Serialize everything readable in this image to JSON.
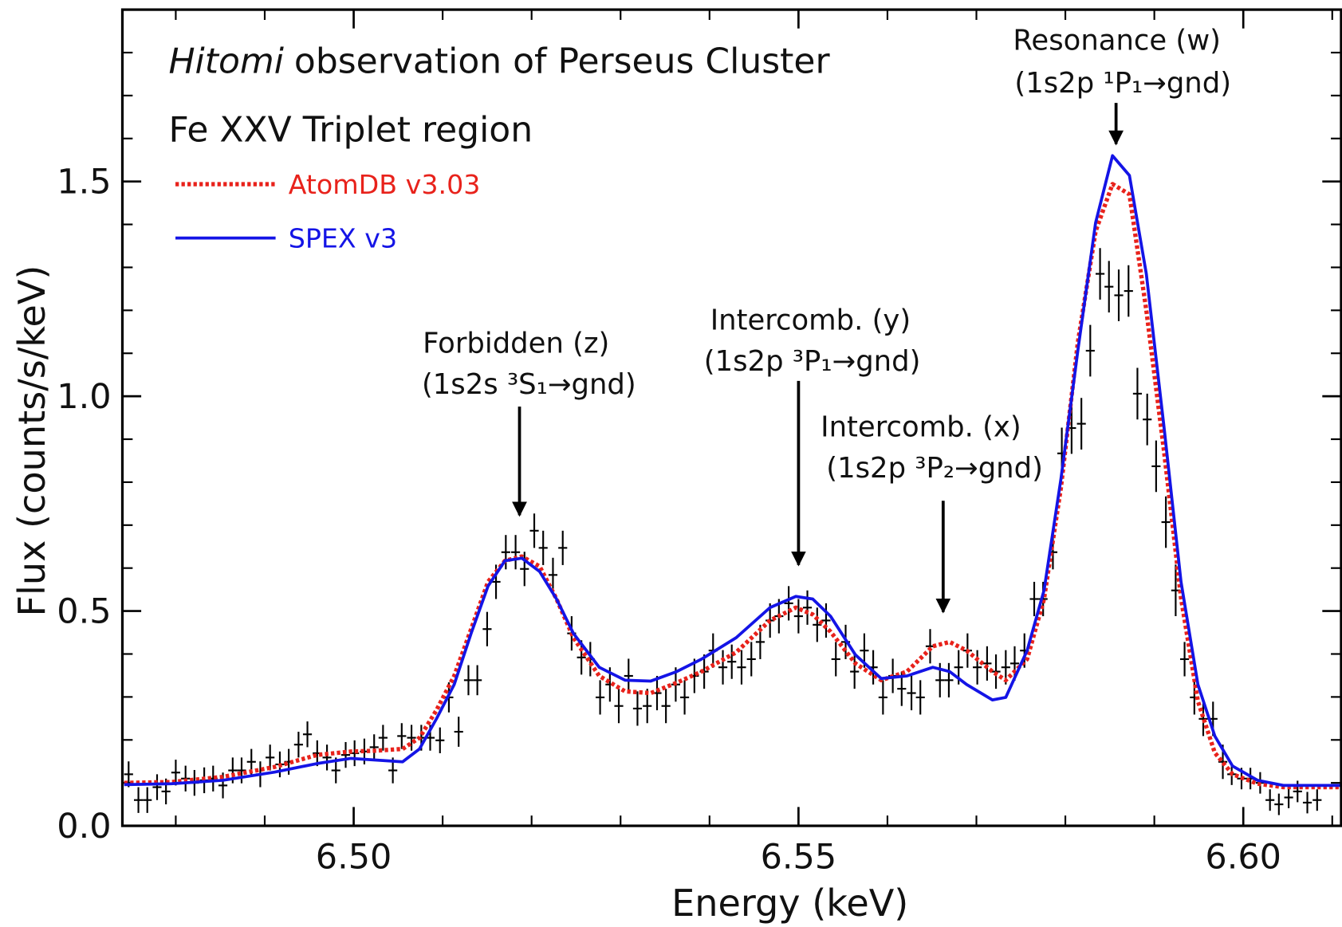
{
  "chart_data": {
    "type": "line",
    "title": [
      "Hitomi",
      "observation of Perseus Cluster"
    ],
    "subtitle": "Fe XXV Triplet region",
    "x_label": "Energy (keV)",
    "y_label": "Flux (counts/s/keV)",
    "xlim": [
      6.474,
      6.611
    ],
    "ylim": [
      0,
      1.9
    ],
    "xticks": [
      {
        "value": 6.5,
        "label": "6.50"
      },
      6.55,
      {
        "value": 6.6,
        "label": "6.60"
      }
    ],
    "yticks": [
      {
        "value": 0,
        "label": "0.0"
      },
      0.5,
      {
        "value": 1,
        "label": "1.0"
      },
      1.5
    ],
    "xminorticks": [
      6.48,
      6.49,
      6.51,
      6.52,
      6.53,
      6.54,
      6.56,
      6.57,
      6.58,
      6.59,
      6.61
    ],
    "yminorticks": [
      0.1,
      0.2,
      0.3,
      0.4,
      0.6,
      0.7,
      0.8,
      0.9,
      1.1,
      1.2,
      1.3,
      1.4,
      1.6,
      1.7,
      1.8,
      1.9
    ],
    "legend": "upper left",
    "x": [
      6.4742,
      6.4795,
      6.4853,
      6.4911,
      6.4959,
      6.4997,
      6.5026,
      6.5055,
      6.5074,
      6.5093,
      6.5113,
      6.5132,
      6.5151,
      6.517,
      6.5189,
      6.5209,
      6.5228,
      6.5247,
      6.5276,
      6.5305,
      6.5334,
      6.5363,
      6.5391,
      6.543,
      6.5468,
      6.5497,
      6.5516,
      6.5536,
      6.5564,
      6.5593,
      6.5622,
      6.5651,
      6.567,
      6.5689,
      6.5718,
      6.5733,
      6.5757,
      6.5776,
      6.5795,
      6.5814,
      6.5834,
      6.5853,
      6.5872,
      6.5891,
      6.5911,
      6.593,
      6.5949,
      6.5968,
      6.5988,
      6.6016,
      6.6045,
      6.6111
    ],
    "series": [
      {
        "name": "AtomDB v3.03",
        "color": "#e8221b",
        "linestyle": "dotted",
        "values": [
          0.1,
          0.102,
          0.114,
          0.137,
          0.165,
          0.173,
          0.175,
          0.179,
          0.205,
          0.269,
          0.349,
          0.458,
          0.568,
          0.617,
          0.627,
          0.604,
          0.528,
          0.438,
          0.349,
          0.313,
          0.309,
          0.333,
          0.359,
          0.404,
          0.478,
          0.508,
          0.492,
          0.452,
          0.378,
          0.339,
          0.359,
          0.418,
          0.428,
          0.408,
          0.359,
          0.339,
          0.388,
          0.528,
          0.787,
          1.125,
          1.384,
          1.494,
          1.47,
          1.2,
          0.87,
          0.53,
          0.29,
          0.17,
          0.12,
          0.098,
          0.09,
          0.09
        ]
      },
      {
        "name": "SPEX v3",
        "color": "#1414e6",
        "linestyle": "solid",
        "values": [
          0.096,
          0.098,
          0.106,
          0.125,
          0.145,
          0.157,
          0.153,
          0.149,
          0.179,
          0.249,
          0.329,
          0.448,
          0.558,
          0.617,
          0.623,
          0.592,
          0.528,
          0.448,
          0.369,
          0.339,
          0.337,
          0.359,
          0.388,
          0.438,
          0.508,
          0.534,
          0.528,
          0.488,
          0.398,
          0.343,
          0.349,
          0.369,
          0.359,
          0.329,
          0.293,
          0.299,
          0.408,
          0.548,
          0.807,
          1.106,
          1.404,
          1.56,
          1.514,
          1.285,
          0.926,
          0.568,
          0.329,
          0.209,
          0.139,
          0.106,
          0.094,
          0.094
        ]
      }
    ],
    "errorbars": {
      "color": "#000000",
      "xerr": 0.0005,
      "x": [
        6.4747,
        6.4758,
        6.4768,
        6.4779,
        6.4789,
        6.48,
        6.4811,
        6.4821,
        6.4832,
        6.4842,
        6.4853,
        6.4864,
        6.4874,
        6.4885,
        6.4895,
        6.4906,
        6.4917,
        6.4927,
        6.4938,
        6.4948,
        6.4959,
        6.497,
        6.498,
        6.4991,
        6.5001,
        6.5012,
        6.5023,
        6.5033,
        6.5044,
        6.5054,
        6.5065,
        6.5076,
        6.5086,
        6.5097,
        6.5107,
        6.5118,
        6.5129,
        6.5139,
        6.515,
        6.516,
        6.5171,
        6.5182,
        6.5192,
        6.5203,
        6.5213,
        6.5224,
        6.5235,
        6.5245,
        6.5256,
        6.5266,
        6.5277,
        6.5288,
        6.5298,
        6.5309,
        6.5319,
        6.533,
        6.5341,
        6.5351,
        6.5362,
        6.5372,
        6.5383,
        6.5394,
        6.5404,
        6.5415,
        6.5425,
        6.5436,
        6.5447,
        6.5457,
        6.5468,
        6.5478,
        6.5489,
        6.55,
        6.551,
        6.5521,
        6.5531,
        6.5542,
        6.5553,
        6.5563,
        6.5574,
        6.5584,
        6.5595,
        6.5606,
        6.5616,
        6.5627,
        6.5637,
        6.5648,
        6.5659,
        6.5669,
        6.568,
        6.569,
        6.5701,
        6.5712,
        6.5722,
        6.5733,
        6.5743,
        6.5754,
        6.5765,
        6.5775,
        6.5786,
        6.5796,
        6.5807,
        6.5818,
        6.5828,
        6.5839,
        6.5849,
        6.586,
        6.5871,
        6.5881,
        6.5892,
        6.5902,
        6.5913,
        6.5924,
        6.5934,
        6.5945,
        6.5955,
        6.5966,
        6.5977,
        6.5987,
        6.5998,
        6.6008,
        6.6019,
        6.603,
        6.604,
        6.6051,
        6.6061,
        6.6072,
        6.6083
      ],
      "y": [
        0.12,
        0.06,
        0.06,
        0.09,
        0.08,
        0.124,
        0.11,
        0.1,
        0.106,
        0.11,
        0.094,
        0.129,
        0.129,
        0.149,
        0.12,
        0.159,
        0.143,
        0.149,
        0.189,
        0.213,
        0.169,
        0.159,
        0.129,
        0.165,
        0.169,
        0.173,
        0.183,
        0.205,
        0.129,
        0.209,
        0.205,
        0.205,
        0.205,
        0.199,
        0.299,
        0.219,
        0.339,
        0.339,
        0.458,
        0.568,
        0.637,
        0.637,
        0.598,
        0.687,
        0.647,
        0.584,
        0.647,
        0.448,
        0.392,
        0.388,
        0.299,
        0.329,
        0.279,
        0.349,
        0.273,
        0.279,
        0.309,
        0.279,
        0.329,
        0.299,
        0.349,
        0.359,
        0.408,
        0.369,
        0.382,
        0.369,
        0.388,
        0.428,
        0.478,
        0.488,
        0.518,
        0.488,
        0.508,
        0.468,
        0.478,
        0.388,
        0.428,
        0.359,
        0.408,
        0.369,
        0.299,
        0.349,
        0.319,
        0.309,
        0.299,
        0.418,
        0.339,
        0.339,
        0.369,
        0.408,
        0.369,
        0.378,
        0.359,
        0.369,
        0.378,
        0.408,
        0.528,
        0.528,
        0.637,
        0.867,
        0.926,
        0.936,
        1.106,
        1.285,
        1.255,
        1.235,
        1.245,
        1.006,
        0.946,
        0.837,
        0.707,
        0.548,
        0.388,
        0.299,
        0.249,
        0.249,
        0.149,
        0.12,
        0.11,
        0.11,
        0.1,
        0.06,
        0.05,
        0.066,
        0.08,
        0.054,
        0.06
      ],
      "yerr": [
        0.03,
        0.03,
        0.03,
        0.03,
        0.03,
        0.03,
        0.03,
        0.03,
        0.03,
        0.03,
        0.03,
        0.03,
        0.03,
        0.03,
        0.03,
        0.03,
        0.03,
        0.03,
        0.03,
        0.03,
        0.03,
        0.03,
        0.03,
        0.03,
        0.03,
        0.03,
        0.03,
        0.03,
        0.03,
        0.03,
        0.03,
        0.03,
        0.03,
        0.03,
        0.035,
        0.035,
        0.035,
        0.035,
        0.04,
        0.04,
        0.04,
        0.04,
        0.04,
        0.04,
        0.04,
        0.04,
        0.04,
        0.04,
        0.04,
        0.04,
        0.04,
        0.04,
        0.04,
        0.04,
        0.04,
        0.04,
        0.04,
        0.04,
        0.04,
        0.04,
        0.04,
        0.04,
        0.04,
        0.04,
        0.04,
        0.04,
        0.04,
        0.04,
        0.04,
        0.04,
        0.04,
        0.04,
        0.04,
        0.04,
        0.04,
        0.04,
        0.04,
        0.04,
        0.04,
        0.04,
        0.04,
        0.04,
        0.04,
        0.04,
        0.04,
        0.04,
        0.04,
        0.04,
        0.04,
        0.04,
        0.04,
        0.04,
        0.04,
        0.04,
        0.04,
        0.04,
        0.04,
        0.04,
        0.04,
        0.06,
        0.06,
        0.06,
        0.06,
        0.06,
        0.06,
        0.06,
        0.06,
        0.06,
        0.06,
        0.06,
        0.06,
        0.06,
        0.04,
        0.04,
        0.04,
        0.04,
        0.04,
        0.025,
        0.025,
        0.025,
        0.025,
        0.025,
        0.025,
        0.025,
        0.025,
        0.025,
        0.025
      ]
    },
    "annotations": [
      [
        "Forbidden (z)",
        "(1s2s ³S₁→gnd)"
      ],
      [
        "Intercomb. (y)",
        "(1s2p ³P₁→gnd)"
      ],
      [
        "Intercomb. (x)",
        "(1s2p ³P₂→gnd)"
      ],
      [
        "Resonance (w)",
        "(1s2p ¹P₁→gnd)"
      ]
    ]
  }
}
